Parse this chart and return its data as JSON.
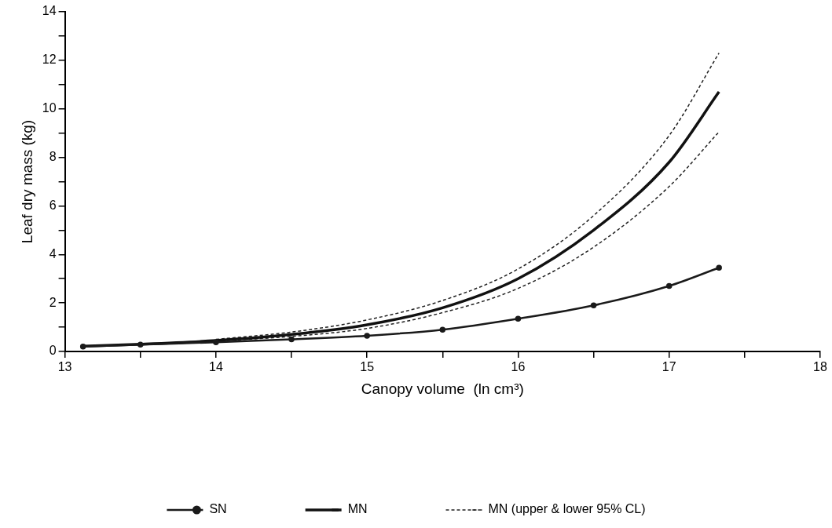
{
  "chart_data": {
    "type": "line",
    "xlabel": "Canopy volume  (ln cm³)",
    "ylabel": "Leaf dry mass (kg)",
    "xlim": [
      13,
      18
    ],
    "xticks": [
      13,
      {
        "value": 13.5,
        "label": null
      },
      14,
      {
        "value": 14.5,
        "label": null
      },
      15,
      {
        "value": 15.5,
        "label": null
      },
      16,
      {
        "value": 16.5,
        "label": null
      },
      17,
      {
        "value": 17.5,
        "label": null
      },
      18
    ],
    "ylim": [
      0,
      14
    ],
    "yticks": [
      0,
      {
        "value": 1,
        "label": null
      },
      2,
      {
        "value": 3,
        "label": null
      },
      4,
      {
        "value": 5,
        "label": null
      },
      6,
      {
        "value": 7,
        "label": null
      },
      8,
      {
        "value": 9,
        "label": null
      },
      10,
      {
        "value": 11,
        "label": null
      },
      12,
      {
        "value": 13,
        "label": null
      },
      14
    ],
    "grid": false,
    "legend": "bottom",
    "series": [
      {
        "name": "SN",
        "color": "#1a1a1a",
        "marker": "circle",
        "line_style": "solid",
        "x": [
          13.12,
          13.5,
          14,
          14.5,
          15,
          15.5,
          16,
          16.5,
          17,
          17.33
        ],
        "values": [
          0.2,
          0.28,
          0.38,
          0.5,
          0.65,
          0.9,
          1.35,
          1.9,
          2.7,
          3.45
        ]
      },
      {
        "name": "MN",
        "color": "#111111",
        "line_style": "solid",
        "x": [
          13.12,
          13.5,
          14,
          14.5,
          15,
          15.5,
          16,
          16.5,
          17,
          17.33
        ],
        "values": [
          0.22,
          0.3,
          0.45,
          0.7,
          1.1,
          1.8,
          3.0,
          5.0,
          7.8,
          10.7
        ]
      },
      {
        "name": "MN (upper & lower 95% CL)",
        "color": "#222222",
        "line_style": "dashed",
        "x": [
          14,
          14.5,
          15,
          15.5,
          16,
          16.5,
          17,
          17.33
        ],
        "values": [
          0.5,
          0.8,
          1.3,
          2.1,
          3.4,
          5.6,
          8.9,
          12.3
        ]
      },
      {
        "color": "#222222",
        "line_style": "dashed",
        "x": [
          14,
          14.5,
          15,
          15.5,
          16,
          16.5,
          17,
          17.33
        ],
        "values": [
          0.43,
          0.62,
          0.95,
          1.6,
          2.6,
          4.3,
          6.8,
          9.05
        ]
      }
    ]
  }
}
